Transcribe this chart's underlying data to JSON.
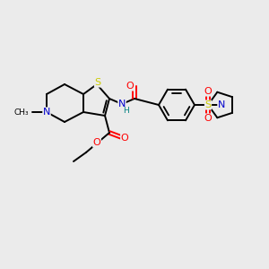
{
  "bg_color": "#ebebeb",
  "atom_colors": {
    "C": "#000000",
    "N": "#0000cc",
    "O": "#ff0000",
    "S": "#cccc00",
    "H": "#008080"
  },
  "bond_color": "#000000",
  "figsize": [
    3.0,
    3.0
  ],
  "dpi": 100,
  "lw": 1.4,
  "fs": 7.0
}
